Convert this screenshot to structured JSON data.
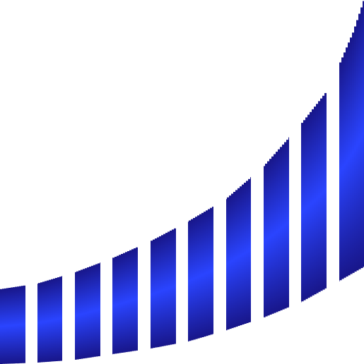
{
  "graphic": {
    "icon": "rising-curved-band-icon",
    "band_segments": 10,
    "colors": {
      "background": "#ffffff",
      "edge": "#18168a",
      "center": "#2a44ff"
    }
  }
}
